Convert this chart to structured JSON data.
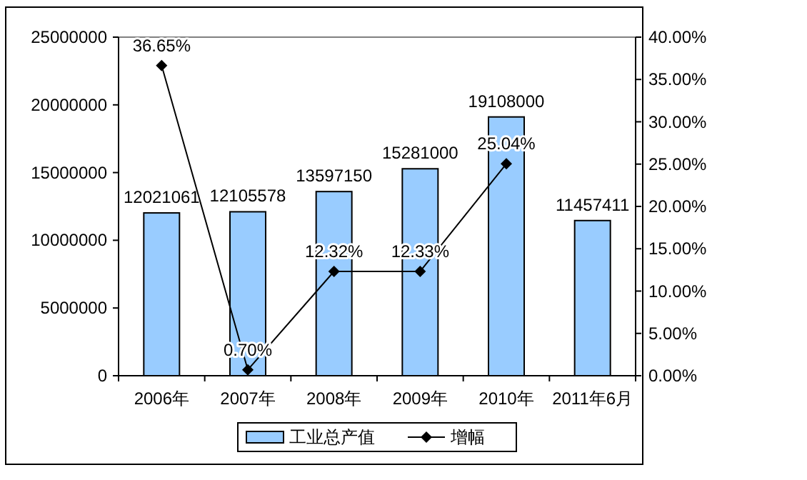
{
  "chart_data": {
    "type": "bar",
    "categories": [
      "2006年",
      "2007年",
      "2008年",
      "2009年",
      "2010年",
      "2011年6月"
    ],
    "series": [
      {
        "name": "工业总产值",
        "color": "#99ccff",
        "values": [
          12021061,
          12105578,
          13597150,
          15281000,
          19108000,
          11457411
        ],
        "value_labels": [
          "12021061",
          "12105578",
          "13597150",
          "15281000",
          "19108000",
          "11457411"
        ]
      },
      {
        "name": "增幅",
        "type": "line",
        "axis": "y2",
        "color": "#000000",
        "marker": "diamond",
        "values": [
          36.65,
          0.7,
          12.32,
          12.33,
          25.04,
          null
        ],
        "value_labels": [
          "36.65%",
          "0.70%",
          "12.32%",
          "12.33%",
          "25.04%",
          null
        ]
      }
    ],
    "ylim": [
      0,
      25000000
    ],
    "yticks": [
      0,
      5000000,
      10000000,
      15000000,
      20000000,
      25000000
    ],
    "y2lim": [
      0,
      40
    ],
    "y2ticks": [
      {
        "value": 0,
        "label": "0.00%"
      },
      {
        "value": 5,
        "label": "5.00%"
      },
      {
        "value": 10,
        "label": "10.00%"
      },
      {
        "value": 15,
        "label": "15.00%"
      },
      {
        "value": 20,
        "label": "20.00%"
      },
      {
        "value": 25,
        "label": "25.00%"
      },
      {
        "value": 30,
        "label": "30.00%"
      },
      {
        "value": 35,
        "label": "35.00%"
      },
      {
        "value": 40,
        "label": "40.00%"
      }
    ],
    "grid": false,
    "legend": "bottom"
  }
}
